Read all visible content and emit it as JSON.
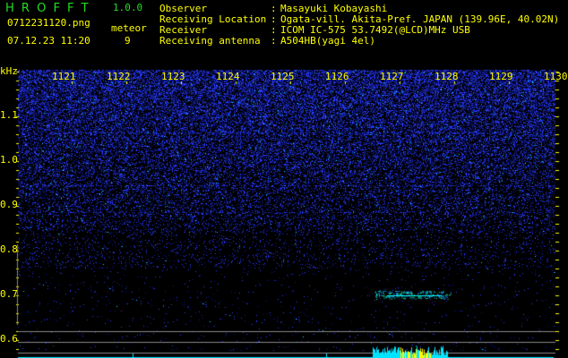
{
  "app": {
    "name": "H R O F F T",
    "version": "1.0.0"
  },
  "file": {
    "name": "0712231120.png",
    "datetime": "07.12.23 11:20",
    "meteor_label": "meteor",
    "meteor_count": "9"
  },
  "info": [
    {
      "label": "Observer",
      "value": "Masayuki Kobayashi"
    },
    {
      "label": "Receiving Location",
      "value": "Ogata-vill. Akita-Pref. JAPAN (139.96E, 40.02N)"
    },
    {
      "label": "Receiver",
      "value": "ICOM IC-575 53.7492(@LCD)MHz USB"
    },
    {
      "label": "Receiving antenna",
      "value": "A504HB(yagi 4el)"
    }
  ],
  "axes": {
    "y_unit": "kHz",
    "x_ticks": [
      "1121",
      "1122",
      "1123",
      "1124",
      "1125",
      "1126",
      "1127",
      "1128",
      "1129",
      "1130"
    ],
    "y_ticks": [
      "1.1",
      "1.0",
      "0.9",
      "0.8",
      "0.7",
      "0.6"
    ]
  },
  "colors": {
    "text": "#ffff00",
    "logo": "#22dd22",
    "noise": "#2030ff",
    "echo": "#00ffff",
    "histogram": "#00e5ff",
    "histogram_peak": "#ffff00"
  }
}
